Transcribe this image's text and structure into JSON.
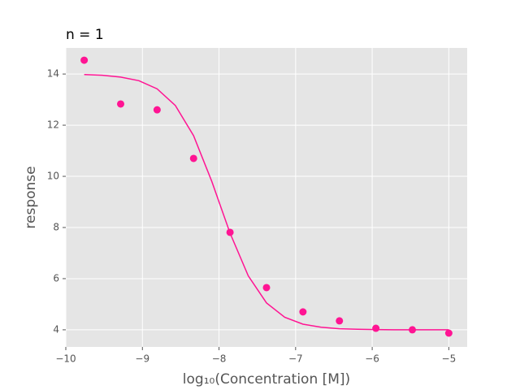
{
  "chart_data": {
    "type": "scatter",
    "title": "n = 1",
    "x_label": "log₁₀(Concentration [M])",
    "y_label": "response",
    "grid": true,
    "color": "#ff1493",
    "x": [
      -9.76,
      -9.284,
      -8.808,
      -8.332,
      -7.856,
      -7.38,
      -6.904,
      -6.428,
      -5.952,
      -5.476,
      -5.0
    ],
    "values": [
      14.54,
      12.83,
      12.6,
      10.7,
      7.81,
      5.65,
      4.7,
      4.35,
      4.06,
      4.0,
      3.87
    ],
    "fit": {
      "x": [
        -9.76,
        -9.522,
        -9.284,
        -9.046,
        -8.808,
        -8.57,
        -8.332,
        -8.094,
        -7.856,
        -7.618,
        -7.38,
        -7.142,
        -6.904,
        -6.666,
        -6.428,
        -6.19,
        -5.952,
        -5.714,
        -5.476,
        -5.238,
        -5.0
      ],
      "values": [
        13.98,
        13.95,
        13.88,
        13.74,
        13.42,
        12.77,
        11.59,
        9.8,
        7.78,
        6.11,
        5.05,
        4.49,
        4.22,
        4.1,
        4.04,
        4.02,
        4.01,
        4.0,
        4.0,
        4.0,
        4.0
      ]
    },
    "xlim": [
      -10,
      -4.76
    ],
    "ylim": [
      3.33,
      15.02
    ],
    "xticks": [
      {
        "value": -10,
        "label": "−10"
      },
      {
        "value": -9,
        "label": "−9"
      },
      {
        "value": -8,
        "label": "−8"
      },
      {
        "value": -7,
        "label": "−7"
      },
      {
        "value": -6,
        "label": "−6"
      },
      {
        "value": -5,
        "label": "−5"
      }
    ],
    "yticks": [
      4,
      6,
      8,
      10,
      12,
      14
    ]
  }
}
